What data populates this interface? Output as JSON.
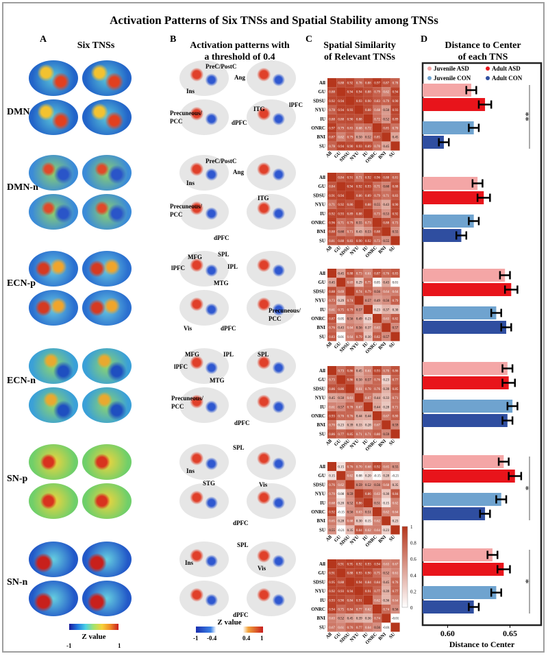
{
  "title": "Activation Patterns of  Six TNSs and Spatial Stability among TNSs",
  "panels": {
    "A": {
      "letter": "A",
      "title": "Six TNSs"
    },
    "B": {
      "letter": "B",
      "title_line1": "Activation patterns with",
      "title_line2": "a threshold of 0.4"
    },
    "C": {
      "letter": "C",
      "title_line1": "Spatial Similarity",
      "title_line2": "of Relevant TNSs"
    },
    "D": {
      "letter": "D",
      "title_line1": "Distance to Center",
      "title_line2": "of each TNS"
    }
  },
  "row_labels": [
    "DMN-p",
    "DMN-n",
    "ECN-p",
    "ECN-n",
    "SN-p",
    "SN-n"
  ],
  "brain_labels": [
    [
      "PreC/PostC",
      "Ang",
      "Ins",
      "ITG",
      "lPFC",
      "Precuneous/",
      "PCC",
      "dPFC"
    ],
    [
      "PreC/PostC",
      "Ang",
      "Ins",
      "ITG",
      "Precuneous/",
      "PCC",
      "dPFC"
    ],
    [
      "MFG",
      "SPL",
      "lPFC",
      "IPL",
      "MTG",
      "Vis",
      "dPFC",
      "Precuneous/",
      "PCC"
    ],
    [
      "MFG",
      "IPL",
      "SPL",
      "lPFC",
      "MTG",
      "Precuneous/",
      "PCC",
      "dPFC"
    ],
    [
      "SPL",
      "Ins",
      "STG",
      "Vis",
      "dPFC"
    ],
    [
      "SPL",
      "Ins",
      "Vis",
      "dPFC"
    ]
  ],
  "colorbar_A": {
    "title": "Z value",
    "ticks": [
      "-1",
      "1"
    ]
  },
  "colorbar_B": {
    "title": "Z value",
    "ticks": [
      "-1",
      "-0.4",
      "0.4",
      "1"
    ]
  },
  "colorbar_C": {
    "ticks": [
      "1",
      "0.8",
      "0.6",
      "0.4",
      "0.2",
      "0"
    ]
  },
  "colors": {
    "juvenile_asd": "#f4a6a6",
    "adult_asd": "#e8141b",
    "juvenile_con": "#6fa3cf",
    "adult_con": "#2f4ea0",
    "heat_high": "#b5361c"
  },
  "chart_data": [
    {
      "type": "heatmap",
      "title": "Spatial Similarity of Relevant TNSs",
      "labels": [
        "All",
        "GU",
        "SDSU",
        "NYU",
        "IU",
        "ONRC",
        "BNI",
        "SU"
      ],
      "matrices": [
        [
          [
            1,
            0.88,
            0.92,
            0.78,
            0.88,
            0.97,
            0.87,
            0.78
          ],
          [
            0.88,
            1,
            0.94,
            0.94,
            0.88,
            0.79,
            0.62,
            0.94
          ],
          [
            0.92,
            0.94,
            1,
            0.93,
            0.9,
            0.83,
            0.79,
            0.9
          ],
          [
            0.78,
            0.94,
            0.93,
            1,
            0.88,
            0.68,
            0.5,
            0.93
          ],
          [
            0.88,
            0.88,
            0.9,
            0.88,
            1,
            0.72,
            0.52,
            0.89
          ],
          [
            0.97,
            0.79,
            0.83,
            0.68,
            0.72,
            1,
            0.85,
            0.7
          ],
          [
            0.87,
            0.62,
            0.79,
            0.5,
            0.52,
            0.85,
            1,
            0.45
          ],
          [
            0.78,
            0.94,
            0.9,
            0.93,
            0.89,
            0.7,
            0.45,
            1
          ]
        ],
        [
          [
            1,
            0.84,
            0.91,
            0.71,
            0.92,
            0.96,
            0.88,
            0.81
          ],
          [
            0.84,
            1,
            0.94,
            0.92,
            0.93,
            0.71,
            0.6,
            0.88
          ],
          [
            0.91,
            0.94,
            1,
            0.86,
            0.89,
            0.79,
            0.71,
            0.83
          ],
          [
            0.71,
            0.92,
            0.86,
            1,
            0.88,
            0.55,
            0.43,
            0.9
          ],
          [
            0.92,
            0.93,
            0.89,
            0.88,
            1,
            0.73,
            0.53,
            0.92
          ],
          [
            0.96,
            0.71,
            0.79,
            0.55,
            0.73,
            1,
            0.88,
            0.73
          ],
          [
            0.88,
            0.6,
            0.71,
            0.43,
            0.53,
            0.88,
            1,
            0.55
          ],
          [
            0.81,
            0.88,
            0.83,
            0.9,
            0.92,
            0.73,
            0.55,
            1
          ]
        ],
        [
          [
            1,
            0.45,
            0.88,
            0.73,
            0.61,
            0.87,
            0.76,
            0.83
          ],
          [
            0.45,
            1,
            0.69,
            0.29,
            0.75,
            0.05,
            0.43,
            0.01
          ],
          [
            0.88,
            0.69,
            1,
            0.74,
            0.79,
            0.56,
            0.64,
            0.64
          ],
          [
            0.73,
            0.29,
            0.74,
            1,
            0.57,
            0.49,
            0.56,
            0.79
          ],
          [
            0.61,
            0.75,
            0.79,
            0.57,
            1,
            0.23,
            0.37,
            0.3
          ],
          [
            0.87,
            0.05,
            0.56,
            0.49,
            0.23,
            1,
            0.63,
            0.82
          ],
          [
            0.76,
            0.43,
            0.64,
            0.56,
            0.37,
            0.63,
            1,
            0.57
          ],
          [
            0.83,
            0.01,
            0.64,
            0.79,
            0.3,
            0.82,
            0.57,
            1
          ]
        ],
        [
          [
            1,
            0.73,
            0.86,
            0.45,
            0.61,
            0.93,
            0.7,
            0.86
          ],
          [
            0.73,
            1,
            0.86,
            0.5,
            0.57,
            0.76,
            0.23,
            0.77
          ],
          [
            0.86,
            0.86,
            1,
            0.61,
            0.78,
            0.76,
            0.39,
            0.85
          ],
          [
            0.45,
            0.5,
            0.61,
            1,
            0.67,
            0.44,
            0.33,
            0.71
          ],
          [
            0.61,
            0.57,
            0.78,
            0.67,
            1,
            0.44,
            0.28,
            0.71
          ],
          [
            0.93,
            0.76,
            0.76,
            0.44,
            0.44,
            1,
            0.67,
            0.8
          ],
          [
            0.7,
            0.23,
            0.39,
            0.33,
            0.28,
            0.67,
            1,
            0.59
          ],
          [
            0.86,
            0.77,
            0.85,
            0.71,
            0.71,
            0.8,
            0.59,
            1
          ]
        ],
        [
          [
            1,
            0.15,
            0.76,
            0.7,
            0.68,
            0.92,
            0.65,
            0.55
          ],
          [
            0.15,
            1,
            0.62,
            0.08,
            0.2,
            -0.15,
            0.28,
            -0.21
          ],
          [
            0.76,
            0.62,
            1,
            0.59,
            0.52,
            0.56,
            0.68,
            0.35
          ],
          [
            0.7,
            0.08,
            0.59,
            1,
            0.86,
            0.63,
            0.3,
            0.84
          ],
          [
            0.68,
            0.2,
            0.52,
            0.86,
            1,
            0.51,
            0.15,
            0.62
          ],
          [
            0.92,
            -0.15,
            0.56,
            0.63,
            0.51,
            1,
            0.62,
            0.64
          ],
          [
            0.65,
            0.28,
            0.68,
            0.3,
            0.15,
            0.62,
            1,
            0.23
          ],
          [
            0.55,
            -0.21,
            0.35,
            0.84,
            0.62,
            0.64,
            0.23,
            1
          ]
        ],
        [
          [
            1,
            0.91,
            0.95,
            0.92,
            0.93,
            0.94,
            0.63,
            0.67
          ],
          [
            0.91,
            1,
            0.88,
            0.93,
            0.9,
            0.75,
            0.52,
            0.61
          ],
          [
            0.95,
            0.88,
            1,
            0.94,
            0.84,
            0.84,
            0.45,
            0.76
          ],
          [
            0.92,
            0.93,
            0.94,
            1,
            0.91,
            0.77,
            0.39,
            0.77
          ],
          [
            0.93,
            0.9,
            0.84,
            0.91,
            1,
            0.62,
            0.36,
            0.64
          ],
          [
            0.94,
            0.75,
            0.84,
            0.77,
            0.62,
            1,
            0.74,
            0.56
          ],
          [
            0.63,
            0.52,
            0.45,
            0.39,
            0.36,
            0.74,
            1,
            -0.01
          ],
          [
            0.67,
            0.61,
            0.76,
            0.77,
            0.64,
            0.56,
            -0.01,
            1
          ]
        ]
      ]
    },
    {
      "type": "bar",
      "title": "Distance to Center of each TNS",
      "xlabel": "Distance to Center",
      "xlim": [
        0.58,
        0.675
      ],
      "xticks": [
        "0.60",
        "0.65"
      ],
      "legend": [
        "Juvenile ASD",
        "Adult ASD",
        "Juvenile CON",
        "Adult CON"
      ],
      "groups": [
        "DMN-p",
        "DMN-n",
        "ECN-p",
        "ECN-n",
        "SN-p",
        "SN-n"
      ],
      "series": [
        {
          "name": "Juvenile ASD",
          "values": [
            0.619,
            0.624,
            0.646,
            0.648,
            0.645,
            0.636
          ],
          "errors": [
            0.004,
            0.004,
            0.004,
            0.004,
            0.004,
            0.004
          ]
        },
        {
          "name": "Adult ASD",
          "values": [
            0.63,
            0.629,
            0.651,
            0.649,
            0.654,
            0.645
          ],
          "errors": [
            0.005,
            0.005,
            0.005,
            0.005,
            0.005,
            0.005
          ]
        },
        {
          "name": "Juvenile CON",
          "values": [
            0.621,
            0.621,
            0.639,
            0.652,
            0.643,
            0.639
          ],
          "errors": [
            0.004,
            0.004,
            0.004,
            0.004,
            0.004,
            0.004
          ]
        },
        {
          "name": "Adult CON",
          "values": [
            0.597,
            0.611,
            0.647,
            0.648,
            0.63,
            0.621
          ],
          "errors": [
            0.004,
            0.004,
            0.004,
            0.004,
            0.004,
            0.004
          ]
        }
      ],
      "significance": [
        {
          "group": "DMN-p",
          "mark": "**"
        },
        {
          "group": "SN-p",
          "mark": "*"
        },
        {
          "group": "SN-n",
          "mark": "*"
        }
      ]
    }
  ]
}
